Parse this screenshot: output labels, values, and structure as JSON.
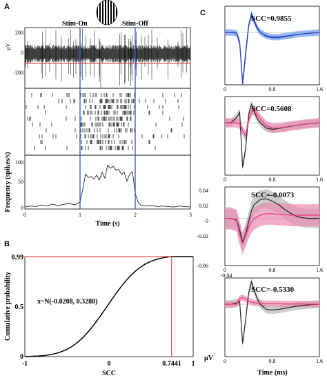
{
  "panels": {
    "A": "A",
    "B": "B",
    "C": "C"
  },
  "panelA": {
    "stim_on_label": "Stim-On",
    "stim_off_label": "Stim-Off",
    "uv_label": "µV",
    "uv_ticks": [
      "200",
      "0",
      "-200"
    ],
    "freq_ylabel": "Frequency (spikes/s)",
    "freq_ticks": [
      "100",
      "50",
      "0"
    ],
    "time_xlabel": "Time (s)",
    "time_ticks": [
      "0",
      "1",
      "2",
      "3"
    ],
    "stim_on_s": 1,
    "stim_off_s": 2,
    "threshold_uv": -100,
    "raster_trials": 10,
    "colors": {
      "stim_line": "#3d5ad6",
      "threshold": "#e0282c"
    }
  },
  "chart_data": [
    {
      "type": "line",
      "title": "",
      "xlabel": "Time (s)",
      "ylabel": "Frequency (spikes/s)",
      "xlim": [
        0,
        3
      ],
      "ylim": [
        0,
        100
      ],
      "x": [
        0,
        0.1,
        0.2,
        0.3,
        0.4,
        0.5,
        0.6,
        0.7,
        0.8,
        0.9,
        1.0,
        1.05,
        1.1,
        1.15,
        1.2,
        1.25,
        1.3,
        1.35,
        1.4,
        1.45,
        1.5,
        1.55,
        1.6,
        1.65,
        1.7,
        1.75,
        1.8,
        1.85,
        1.9,
        1.95,
        2.0,
        2.05,
        2.1,
        2.2,
        2.3,
        2.4,
        2.5,
        2.6,
        2.7,
        2.8,
        2.9,
        3.0
      ],
      "series": [
        {
          "values": [
            4,
            6,
            5,
            8,
            6,
            10,
            7,
            9,
            12,
            8,
            14,
            40,
            70,
            63,
            66,
            60,
            68,
            58,
            74,
            62,
            88,
            82,
            86,
            78,
            80,
            70,
            74,
            56,
            70,
            75,
            32,
            14,
            8,
            6,
            7,
            5,
            6,
            5,
            4,
            6,
            5,
            4
          ]
        }
      ]
    },
    {
      "type": "line",
      "title": "",
      "xlabel": "SCC",
      "ylabel": "Cumulative probability",
      "xlim": [
        -1,
        1
      ],
      "ylim": [
        0,
        0.99
      ],
      "xticks": [
        "-1",
        "0",
        "0.7441",
        "1"
      ],
      "yticks": [
        "0.99",
        "0.5",
        "0"
      ],
      "distribution": {
        "label": "x~N(-0.0208, 0.3288)",
        "mean": -0.0208,
        "sd": 0.3288
      },
      "marker": {
        "x": 0.7441,
        "y": 0.99
      },
      "series": [
        {
          "function": "normal_cdf"
        }
      ]
    },
    {
      "type": "line",
      "title": "SCC=0.9855",
      "xlim": [
        0,
        1.6
      ],
      "ylim": [
        -0.2,
        0.1
      ],
      "x": [
        0,
        0.1,
        0.2,
        0.25,
        0.3,
        0.35,
        0.4,
        0.45,
        0.5,
        0.55,
        0.6,
        0.7,
        0.8,
        0.9,
        1.0,
        1.1,
        1.2,
        1.3,
        1.4,
        1.5,
        1.6
      ],
      "series": [
        {
          "values": [
            0,
            0,
            -0.003,
            -0.04,
            -0.19,
            -0.08,
            0.025,
            0.065,
            0.04,
            0.015,
            0,
            -0.013,
            -0.018,
            -0.018,
            -0.015,
            -0.012,
            -0.008,
            -0.006,
            -0.004,
            -0.002,
            0
          ],
          "color": "#1a237e",
          "band": 0.012,
          "band_color": "#6a9be8"
        },
        {
          "values": [
            0,
            0,
            -0.002,
            -0.035,
            -0.2,
            -0.09,
            0.02,
            0.075,
            0.045,
            0.018,
            0,
            -0.015,
            -0.02,
            -0.02,
            -0.017,
            -0.013,
            -0.009,
            -0.006,
            -0.004,
            -0.002,
            0
          ],
          "color": "#2c4bd0"
        }
      ]
    },
    {
      "type": "line",
      "title": "SCC=0.5608",
      "xlim": [
        0,
        1.6
      ],
      "ylim": [
        -0.2,
        0.1
      ],
      "x": [
        0,
        0.1,
        0.2,
        0.25,
        0.3,
        0.35,
        0.4,
        0.45,
        0.5,
        0.55,
        0.6,
        0.7,
        0.8,
        0.9,
        1.0,
        1.1,
        1.2,
        1.3,
        1.4,
        1.5,
        1.6
      ],
      "series": [
        {
          "values": [
            0,
            0,
            0.02,
            0.04,
            -0.17,
            -0.1,
            0.03,
            0.07,
            0.04,
            0.015,
            0,
            -0.02,
            -0.025,
            -0.022,
            -0.018,
            -0.014,
            -0.01,
            -0.007,
            -0.004,
            -0.002,
            0
          ],
          "color": "#222222",
          "band": 0.015,
          "band_color": "#b9b9b9"
        },
        {
          "values": [
            0,
            0,
            0,
            -0.005,
            -0.03,
            -0.05,
            0.01,
            0.04,
            0.05,
            0.03,
            0.015,
            -0.01,
            -0.02,
            -0.02,
            -0.017,
            -0.013,
            -0.01,
            -0.007,
            -0.004,
            -0.002,
            0
          ],
          "color": "#e23a78",
          "band": 0.018,
          "band_color": "#ea8bb0"
        }
      ]
    },
    {
      "type": "line",
      "title": "SCC=-0.0073",
      "xlim": [
        0,
        1.6
      ],
      "ylim": [
        -0.06,
        0.04
      ],
      "yticks": [
        "0.04",
        "0.02",
        "0",
        "-0.02",
        "-0.04",
        "-0.06"
      ],
      "x": [
        0,
        0.1,
        0.2,
        0.25,
        0.3,
        0.35,
        0.4,
        0.45,
        0.5,
        0.6,
        0.7,
        0.8,
        0.9,
        1.0,
        1.1,
        1.2,
        1.3,
        1.4,
        1.5,
        1.6
      ],
      "series": [
        {
          "values": [
            0,
            0,
            -0.002,
            -0.015,
            -0.03,
            -0.02,
            -0.005,
            0.01,
            0.018,
            0.024,
            0.025,
            0.022,
            0.018,
            0.012,
            0.007,
            0.003,
            0.001,
            0,
            0,
            0
          ],
          "color": "#222222",
          "band": 0.012,
          "band_color": "#b5b5b5"
        },
        {
          "values": [
            0,
            0,
            -0.003,
            -0.02,
            -0.032,
            -0.022,
            -0.012,
            -0.005,
            0,
            0.004,
            0.006,
            0.006,
            0.005,
            0.005,
            0.004,
            0.004,
            0.004,
            0.004,
            0.004,
            0.004
          ],
          "color": "#e23a78",
          "band": 0.014,
          "band_color": "#ea8bb0"
        }
      ]
    },
    {
      "type": "line",
      "title": "SCC=-0.5330",
      "ylabel": "µV",
      "xlabel": "Time (ms)",
      "xlim": [
        0,
        1.6
      ],
      "ylim": [
        -0.2,
        0.1
      ],
      "x": [
        0,
        0.1,
        0.2,
        0.25,
        0.3,
        0.35,
        0.4,
        0.45,
        0.5,
        0.55,
        0.6,
        0.7,
        0.8,
        0.9,
        1.0,
        1.1,
        1.2,
        1.3,
        1.4,
        1.5,
        1.6
      ],
      "series": [
        {
          "values": [
            0,
            0,
            0.005,
            0.01,
            -0.15,
            -0.06,
            0.04,
            0.085,
            0.05,
            0.02,
            0,
            -0.02,
            -0.022,
            -0.02,
            -0.016,
            -0.012,
            -0.008,
            -0.005,
            -0.003,
            -0.001,
            0
          ],
          "color": "#222222",
          "band": 0.015,
          "band_color": "#b9b9b9"
        },
        {
          "values": [
            0,
            0,
            0,
            0.02,
            0.025,
            0.02,
            0.012,
            0.008,
            0.005,
            0.004,
            0.003,
            0.002,
            0.002,
            0.002,
            0.001,
            0.001,
            0.001,
            0.001,
            0,
            0,
            0
          ],
          "color": "#e23a78",
          "band": 0.012,
          "band_color": "#ea8bb0"
        }
      ]
    }
  ],
  "wave_xticks": [
    "0",
    "0.8",
    "1.6"
  ]
}
